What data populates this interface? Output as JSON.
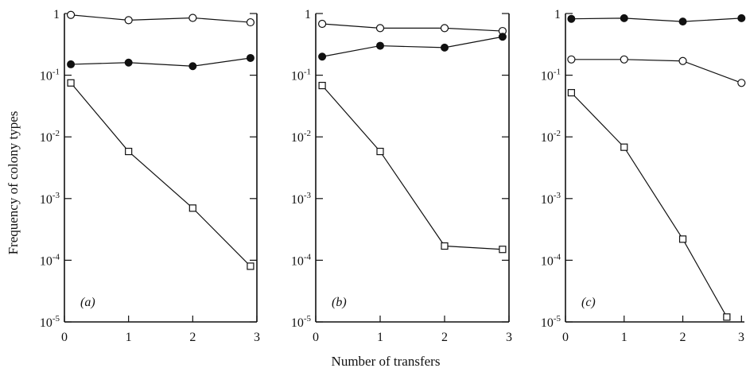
{
  "chart_data": {
    "type": "line",
    "ylabel": "Frequency of colony types",
    "xlabel": "Number of transfers",
    "y_scale": "log",
    "ylim": [
      1e-05,
      1
    ],
    "xlim": [
      0,
      3
    ],
    "x_ticks": [
      "0",
      "1",
      "2",
      "3"
    ],
    "y_ticks": [
      {
        "base": "1",
        "exp": ""
      },
      {
        "base": "10",
        "exp": "-1"
      },
      {
        "base": "10",
        "exp": "-2"
      },
      {
        "base": "10",
        "exp": "-3"
      },
      {
        "base": "10",
        "exp": "-4"
      },
      {
        "base": "10",
        "exp": "-5"
      }
    ],
    "panels": [
      {
        "label": "(a)",
        "series": [
          {
            "marker": "open-circle",
            "x": [
              0.1,
              1,
              2,
              2.9
            ],
            "y": [
              0.95,
              0.78,
              0.85,
              0.72
            ]
          },
          {
            "marker": "filled-circle",
            "x": [
              0.1,
              1,
              2,
              2.9
            ],
            "y": [
              0.15,
              0.16,
              0.14,
              0.19
            ]
          },
          {
            "marker": "open-square",
            "x": [
              0.1,
              1,
              2,
              2.9
            ],
            "y": [
              0.075,
              0.0058,
              0.0007,
              8e-05
            ]
          }
        ]
      },
      {
        "label": "(b)",
        "series": [
          {
            "marker": "open-circle",
            "x": [
              0.1,
              1,
              2,
              2.9
            ],
            "y": [
              0.68,
              0.58,
              0.58,
              0.52
            ]
          },
          {
            "marker": "filled-circle",
            "x": [
              0.1,
              1,
              2,
              2.9
            ],
            "y": [
              0.2,
              0.3,
              0.28,
              0.42
            ]
          },
          {
            "marker": "open-square",
            "x": [
              0.1,
              1,
              2,
              2.9
            ],
            "y": [
              0.068,
              0.0058,
              0.00017,
              0.00015
            ]
          }
        ]
      },
      {
        "label": "(c)",
        "series": [
          {
            "marker": "filled-circle",
            "x": [
              0.1,
              1,
              2,
              3
            ],
            "y": [
              0.82,
              0.84,
              0.74,
              0.84
            ]
          },
          {
            "marker": "open-circle",
            "x": [
              0.1,
              1,
              2,
              3
            ],
            "y": [
              0.18,
              0.18,
              0.17,
              0.075
            ]
          },
          {
            "marker": "open-square",
            "x": [
              0.1,
              1,
              2,
              2.75
            ],
            "y": [
              0.052,
              0.0068,
              0.00022,
              1.2e-05
            ]
          }
        ]
      }
    ]
  }
}
